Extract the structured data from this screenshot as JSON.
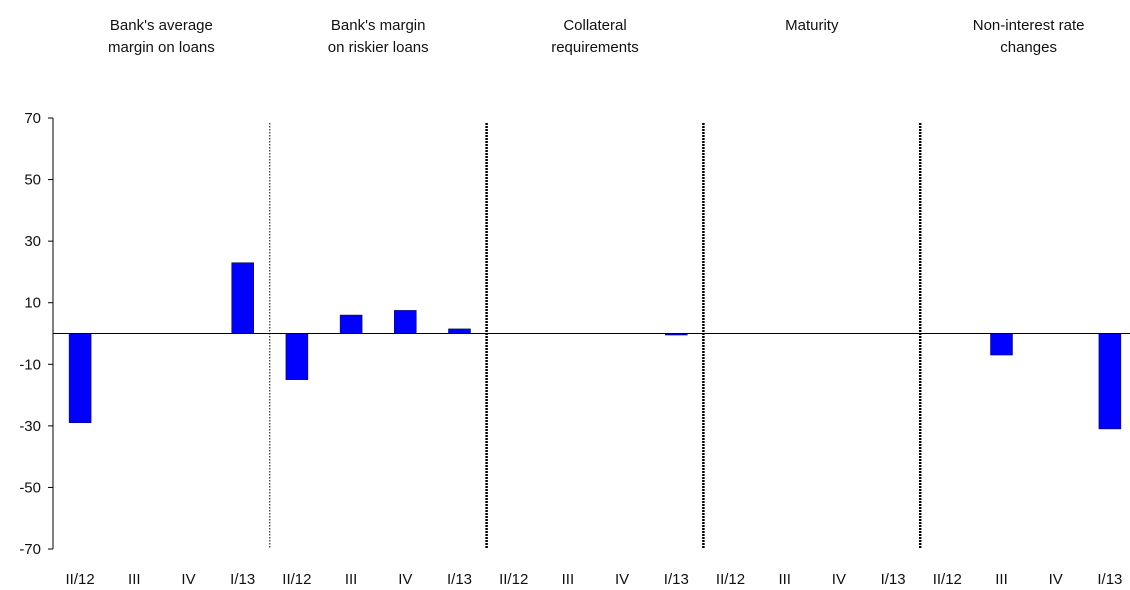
{
  "chart_data": {
    "type": "bar",
    "ylim": [
      -70,
      70
    ],
    "yticks": [
      70,
      50,
      30,
      10,
      -10,
      -30,
      -50,
      -70
    ],
    "grid": false,
    "bar_color": "#0000ff",
    "groups": [
      {
        "title_lines": [
          "Bank's average",
          "margin on loans"
        ],
        "categories": [
          "II/12",
          "III",
          "IV",
          "I/13"
        ],
        "values": [
          -29,
          0,
          0,
          23
        ]
      },
      {
        "title_lines": [
          "Bank's margin",
          "on riskier loans"
        ],
        "categories": [
          "II/12",
          "III",
          "IV",
          "I/13"
        ],
        "values": [
          -15,
          6,
          7.5,
          1.5
        ]
      },
      {
        "title_lines": [
          "Collateral",
          "requirements"
        ],
        "categories": [
          "II/12",
          "III",
          "IV",
          "I/13"
        ],
        "values": [
          0,
          0,
          0,
          -0.5
        ]
      },
      {
        "title_lines": [
          "Maturity"
        ],
        "categories": [
          "II/12",
          "III",
          "IV",
          "I/13"
        ],
        "values": [
          0,
          0,
          0,
          0
        ]
      },
      {
        "title_lines": [
          "Non-interest rate",
          "changes"
        ],
        "categories": [
          "II/12",
          "III",
          "IV",
          "I/13"
        ],
        "values": [
          0,
          -7,
          0,
          -31
        ]
      }
    ]
  }
}
